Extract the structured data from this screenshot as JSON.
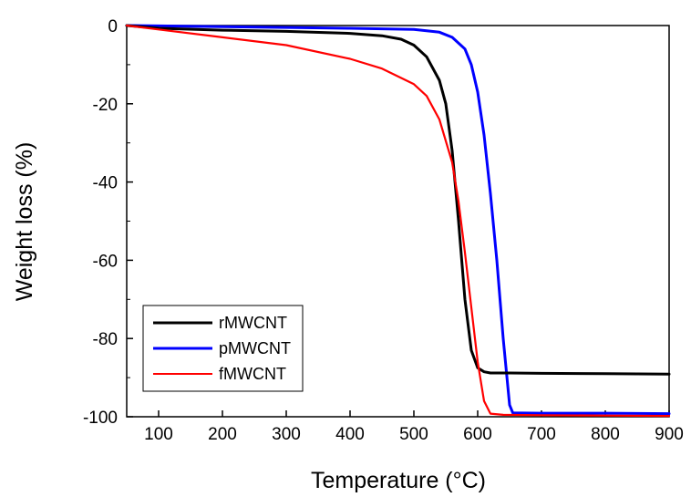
{
  "chart_data": {
    "type": "line",
    "title": "",
    "xlabel": "Temperature (°C)",
    "ylabel": "Weight loss (%)",
    "xlim": [
      50,
      900
    ],
    "ylim": [
      -100,
      0
    ],
    "xticks": [
      100,
      200,
      300,
      400,
      500,
      600,
      700,
      800,
      900
    ],
    "yticks": [
      0,
      -20,
      -40,
      -60,
      -80,
      -100
    ],
    "grid": false,
    "legend_position": "lower-left",
    "series": [
      {
        "name": "rMWCNT",
        "color": "#000000",
        "x": [
          50,
          100,
          200,
          300,
          400,
          450,
          480,
          500,
          520,
          540,
          550,
          560,
          570,
          580,
          590,
          600,
          610,
          620,
          630,
          650,
          700,
          800,
          900
        ],
        "y": [
          0,
          -0.7,
          -1.2,
          -1.5,
          -2.0,
          -2.6,
          -3.5,
          -5,
          -8,
          -14,
          -20,
          -32,
          -50,
          -70,
          -83,
          -87.5,
          -88.5,
          -88.8,
          -88.8,
          -88.8,
          -88.9,
          -89.0,
          -89.1
        ]
      },
      {
        "name": "pMWCNT",
        "color": "#0000ff",
        "x": [
          50,
          100,
          200,
          300,
          400,
          500,
          540,
          560,
          580,
          590,
          600,
          610,
          620,
          630,
          640,
          650,
          655,
          700,
          800,
          900
        ],
        "y": [
          0,
          -0.1,
          -0.3,
          -0.5,
          -0.7,
          -1.0,
          -1.7,
          -3,
          -6,
          -10,
          -17,
          -28,
          -43,
          -60,
          -80,
          -97,
          -99,
          -99.1,
          -99.1,
          -99.2
        ]
      },
      {
        "name": "fMWCNT",
        "color": "#ff0000",
        "x": [
          50,
          100,
          200,
          300,
          400,
          450,
          500,
          520,
          540,
          560,
          570,
          580,
          590,
          600,
          610,
          620,
          640,
          700,
          800,
          900
        ],
        "y": [
          0,
          -1.0,
          -3.0,
          -5.0,
          -8.5,
          -11,
          -15,
          -18,
          -24,
          -35,
          -45,
          -58,
          -72,
          -86,
          -96,
          -99.2,
          -99.5,
          -99.6,
          -99.7,
          -99.8
        ]
      }
    ]
  }
}
